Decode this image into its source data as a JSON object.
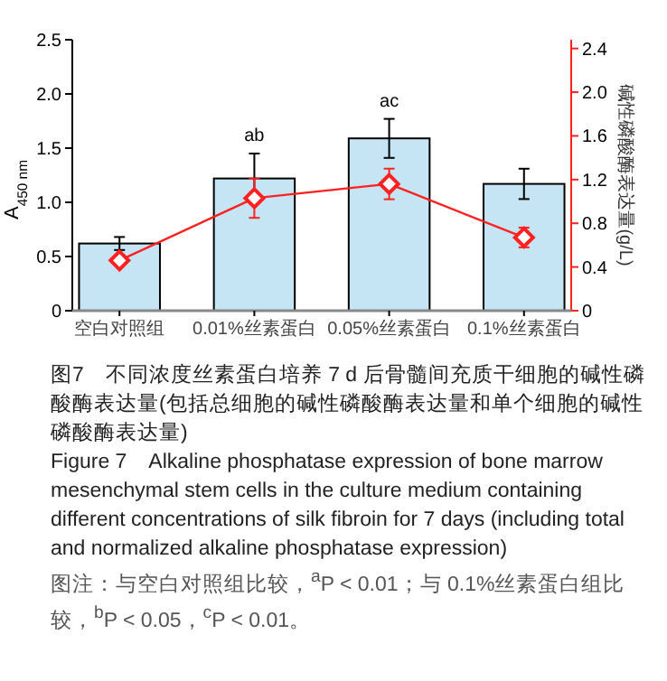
{
  "chart_data": {
    "type": "bar",
    "categories": [
      "空白对照组",
      "0.01%丝素蛋白",
      "0.05%丝素蛋白",
      "0.1%丝素蛋白"
    ],
    "ylabel": "A$_{450 nm}$",
    "y2label": "碱性磷酸酶表达量(g/L)",
    "series": [
      {
        "color": "#c5e5f5",
        "values": [
          0.62,
          1.22,
          1.59,
          1.17
        ],
        "errors": [
          0.06,
          0.23,
          0.18,
          0.14
        ]
      },
      {
        "type": "line",
        "axis": "y2",
        "color": "#ff2020",
        "marker": "diamond",
        "values": [
          0.46,
          1.03,
          1.16,
          0.67
        ],
        "errors": [
          0.04,
          0.18,
          0.14,
          0.09
        ]
      }
    ],
    "ylim": [
      0,
      2.5
    ],
    "yticks": [
      0,
      0.5,
      {
        "value": 1,
        "label": "1.0"
      },
      1.5,
      {
        "value": 2,
        "label": "2.0"
      },
      2.5
    ],
    "y2lim": [
      0,
      2.48
    ],
    "y2ticks": [
      0,
      0.4,
      0.8,
      1.2,
      1.6,
      {
        "value": 2,
        "label": "2.0"
      },
      2.4
    ],
    "grid": false,
    "annotations": [
      {
        "text": "ab",
        "x": "0.01%丝素蛋白",
        "y": 1.45
      },
      {
        "text": "ac",
        "x": "0.05%丝素蛋白",
        "y": 1.77
      },
      "图7　不同浓度丝素蛋白培养 7 d 后骨髓间充质干细胞的碱性磷酸酶表达量(包括总细胞的碱性磷酸酶表达量和单个细胞的碱性磷酸酶表达量)",
      "Figure 7　Alkaline phosphatase expression of bone marrow mesenchymal stem cells in the culture medium containing different concentrations of silk fibroin for 7 days (including total and normalized alkaline phosphatase expression)",
      "图注：与空白对照组比较，$^{a}$P < 0.01；与 0.1%丝素蛋白组比较，$^{b}$P < 0.05，$^{c}$P < 0.01。"
    ]
  }
}
